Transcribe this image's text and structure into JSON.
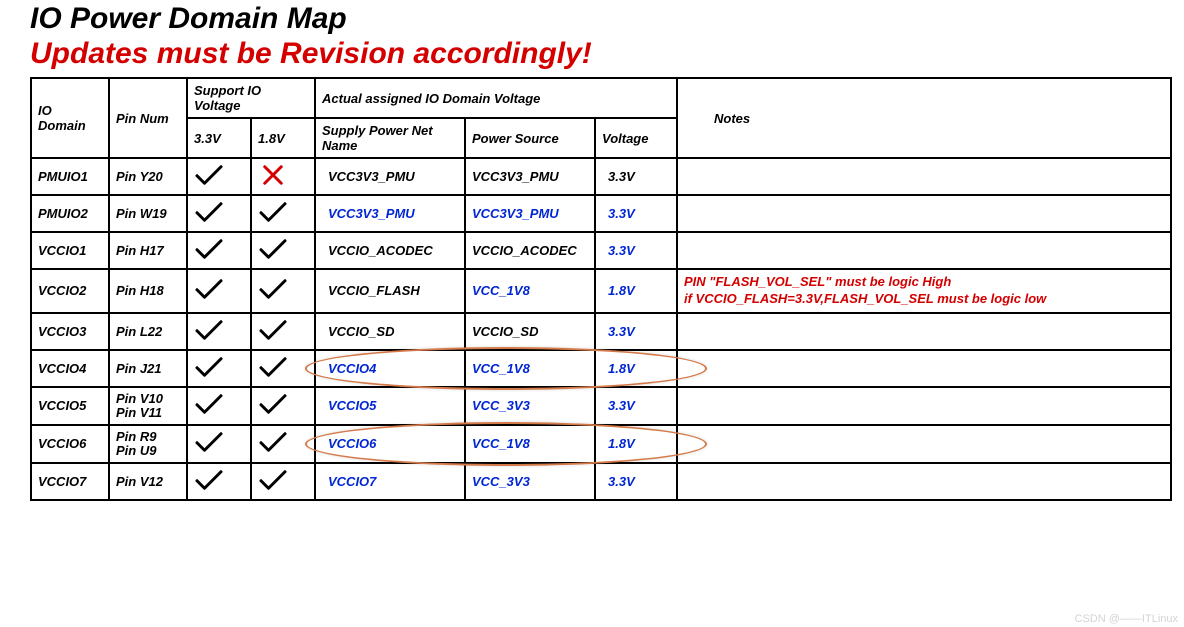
{
  "title": {
    "line1": "IO Power Domain Map",
    "line2": "Updates must be Revision accordingly!"
  },
  "headers": {
    "io_domain": "IO Domain",
    "pin_num": "Pin Num",
    "support_group": "Support IO Voltage",
    "v33": "3.3V",
    "v18": "1.8V",
    "actual_group": "Actual assigned IO Domain Voltage",
    "net_name": "Supply Power Net Name",
    "power_source": "Power Source",
    "voltage": "Voltage",
    "notes": "Notes"
  },
  "colors": {
    "check": "#000000",
    "cross": "#d40000",
    "blue_text": "#0026d4",
    "red_text": "#d40000",
    "annotation_stroke": "#d47a4a",
    "background": "#ffffff",
    "border": "#000000"
  },
  "rows": [
    {
      "io": "PMUIO1",
      "pin": "Pin Y20",
      "s33": "check",
      "s18": "cross",
      "net": "VCC3V3_PMU",
      "net_color": "black",
      "src": "VCC3V3_PMU",
      "src_color": "black",
      "volt": "3.3V",
      "volt_color": "black",
      "note_lines": [],
      "circled": false
    },
    {
      "io": "PMUIO2",
      "pin": "Pin W19",
      "s33": "check",
      "s18": "check",
      "net": "VCC3V3_PMU",
      "net_color": "blue",
      "src": "VCC3V3_PMU",
      "src_color": "blue",
      "volt": "3.3V",
      "volt_color": "blue",
      "note_lines": [],
      "circled": false
    },
    {
      "io": "VCCIO1",
      "pin": "Pin H17",
      "s33": "check",
      "s18": "check",
      "net": "VCCIO_ACODEC",
      "net_color": "black",
      "src": "VCCIO_ACODEC",
      "src_color": "black",
      "volt": "3.3V",
      "volt_color": "blue",
      "note_lines": [],
      "circled": false
    },
    {
      "io": "VCCIO2",
      "pin": "Pin H18",
      "s33": "check",
      "s18": "check",
      "net": "VCCIO_FLASH",
      "net_color": "black",
      "src": "VCC_1V8",
      "src_color": "blue",
      "volt": "1.8V",
      "volt_color": "blue",
      "note_lines": [
        "PIN \"FLASH_VOL_SEL\"  must be logic High",
        "if VCCIO_FLASH=3.3V,FLASH_VOL_SEL must be logic low"
      ],
      "circled": false
    },
    {
      "io": "VCCIO3",
      "pin": "Pin L22",
      "s33": "check",
      "s18": "check",
      "net": "VCCIO_SD",
      "net_color": "black",
      "src": "VCCIO_SD",
      "src_color": "black",
      "volt": "3.3V",
      "volt_color": "blue",
      "note_lines": [],
      "circled": false
    },
    {
      "io": "VCCIO4",
      "pin": "Pin J21",
      "s33": "check",
      "s18": "check",
      "net": "VCCIO4",
      "net_color": "blue",
      "src": "VCC_1V8",
      "src_color": "blue",
      "volt": "1.8V",
      "volt_color": "blue",
      "note_lines": [],
      "circled": true
    },
    {
      "io": "VCCIO5",
      "pin": "Pin V10\nPin V11",
      "s33": "check",
      "s18": "check",
      "net": "VCCIO5",
      "net_color": "blue",
      "src": "VCC_3V3",
      "src_color": "blue",
      "volt": "3.3V",
      "volt_color": "blue",
      "note_lines": [],
      "circled": false
    },
    {
      "io": "VCCIO6",
      "pin": "Pin R9\nPin U9",
      "s33": "check",
      "s18": "check",
      "net": "VCCIO6",
      "net_color": "blue",
      "src": "VCC_1V8",
      "src_color": "blue",
      "volt": "1.8V",
      "volt_color": "blue",
      "note_lines": [],
      "circled": true
    },
    {
      "io": "VCCIO7",
      "pin": "Pin V12",
      "s33": "check",
      "s18": "check",
      "net": "VCCIO7",
      "net_color": "blue",
      "src": "VCC_3V3",
      "src_color": "blue",
      "volt": "3.3V",
      "volt_color": "blue",
      "note_lines": [],
      "circled": false
    }
  ],
  "watermark": "CSDN @——ITLinux"
}
